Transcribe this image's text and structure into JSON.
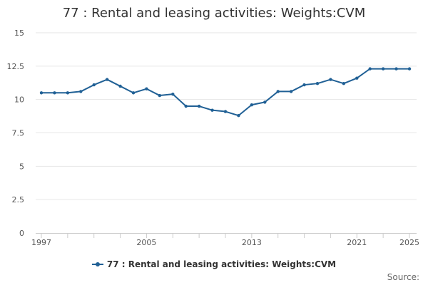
{
  "chart_data": {
    "type": "line",
    "title": "77 : Rental and leasing activities: Weights:CVM",
    "xlabel": "",
    "ylabel": "",
    "ylim": [
      0,
      15
    ],
    "yticks": [
      0,
      2.5,
      5,
      7.5,
      10,
      12.5,
      15
    ],
    "ytick_labels": [
      "0",
      "2.5",
      "5",
      "7.5",
      "10",
      "12.5",
      "15"
    ],
    "xlim": [
      1997,
      2025
    ],
    "xticks": [
      1997,
      2005,
      2013,
      2021,
      2025
    ],
    "xtick_labels": [
      "1997",
      "2005",
      "2013",
      "2021",
      "2025"
    ],
    "grid": true,
    "legend_position": "bottom",
    "series": [
      {
        "name": "77 : Rental and leasing activities: Weights:CVM",
        "color": "#206095",
        "x": [
          1997,
          1998,
          1999,
          2000,
          2001,
          2002,
          2003,
          2004,
          2005,
          2006,
          2007,
          2008,
          2009,
          2010,
          2011,
          2012,
          2013,
          2014,
          2015,
          2016,
          2017,
          2018,
          2019,
          2020,
          2021,
          2022,
          2023,
          2024,
          2025
        ],
        "values": [
          10.5,
          10.5,
          10.5,
          10.6,
          11.1,
          11.5,
          11.0,
          10.5,
          10.8,
          10.3,
          10.4,
          9.5,
          9.5,
          9.2,
          9.1,
          8.8,
          9.6,
          9.8,
          10.6,
          10.6,
          11.1,
          11.2,
          11.5,
          11.2,
          11.6,
          12.3,
          12.3,
          12.3,
          12.3
        ]
      }
    ]
  },
  "footer": {
    "source_label": "Source:"
  }
}
